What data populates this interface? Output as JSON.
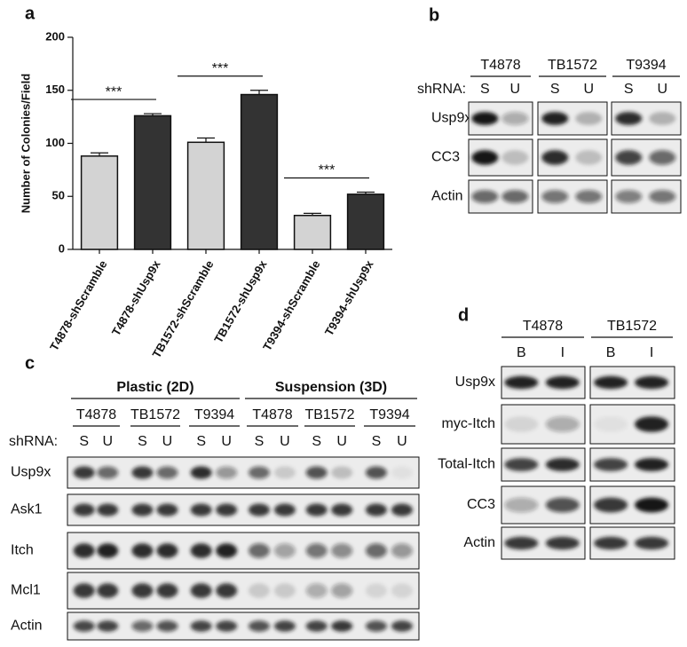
{
  "chart_data": {
    "type": "bar",
    "label": "a",
    "ylabel": "Number of Colonies/Field",
    "categories": [
      "T4878-shScramble",
      "T4878-shUsp9x",
      "TB1572-shScramble",
      "TB1572-shUsp9x",
      "T9394-shScramble",
      "T9394-shUsp9x"
    ],
    "values": [
      88,
      126,
      101,
      146,
      32,
      52
    ],
    "errors": [
      3,
      2,
      4,
      4,
      2,
      2
    ],
    "colors": [
      "#d3d3d3",
      "#333333",
      "#d3d3d3",
      "#333333",
      "#d3d3d3",
      "#333333"
    ],
    "ylim": [
      0,
      200
    ],
    "yticks": [
      0,
      50,
      100,
      150,
      200
    ],
    "significance": [
      "***",
      "***",
      "***"
    ]
  },
  "panel_b": {
    "label": "b",
    "lane_header": "shRNA:",
    "groups": [
      "T4878",
      "TB1572",
      "T9394"
    ],
    "lanes": [
      "S",
      "U"
    ],
    "rows": [
      "Usp9x",
      "CC3",
      "Actin"
    ]
  },
  "panel_c": {
    "label": "c",
    "conditions": [
      "Plastic (2D)",
      "Suspension (3D)"
    ],
    "lane_header": "shRNA:",
    "groups": [
      "T4878",
      "TB1572",
      "T9394"
    ],
    "lanes": [
      "S",
      "U"
    ],
    "rows": [
      "Usp9x",
      "Ask1",
      "Itch",
      "Mcl1",
      "Actin"
    ]
  },
  "panel_d": {
    "label": "d",
    "groups": [
      "T4878",
      "TB1572"
    ],
    "lanes": [
      "B",
      "I"
    ],
    "rows": [
      "Usp9x",
      "myc-Itch",
      "Total-Itch",
      "CC3",
      "Actin"
    ]
  }
}
